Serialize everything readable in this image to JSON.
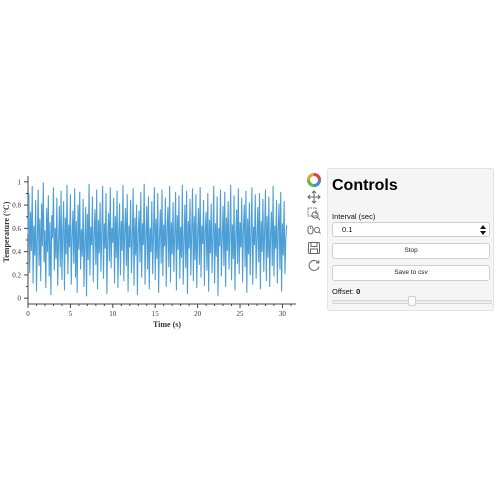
{
  "chart_data": {
    "type": "line",
    "xlabel": "Time (s)",
    "ylabel": "Temperature (°C)",
    "xlim": [
      0,
      31.6
    ],
    "ylim": [
      -0.05,
      1.05
    ],
    "xticks": [
      0,
      5,
      10,
      15,
      20,
      25,
      30
    ],
    "xtick_labels": [
      "0",
      "5",
      "10",
      "15",
      "20",
      "25",
      "30"
    ],
    "yticks": [
      0,
      0.2,
      0.4,
      0.6,
      0.8,
      1
    ],
    "ytick_labels": [
      "0",
      "0.2",
      "0.4",
      "0.6",
      "0.8",
      "1"
    ],
    "line_color": "#4c9fd6",
    "grid": false,
    "series": [
      {
        "x_start": 0,
        "x_step": 0.1,
        "y": [
          0.55,
          0.9,
          0.22,
          0.74,
          0.41,
          0.96,
          0.13,
          0.62,
          0.37,
          0.84,
          0.06,
          0.5,
          0.93,
          0.28,
          0.68,
          0.15,
          0.81,
          0.45,
          0.99,
          0.31,
          0.58,
          0.09,
          0.77,
          0.4,
          0.88,
          0.19,
          0.65,
          0.03,
          0.71,
          0.52,
          0.95,
          0.24,
          0.6,
          0.34,
          0.86,
          0.11,
          0.47,
          0.79,
          0.27,
          0.92,
          0.16,
          0.56,
          0.83,
          0.07,
          0.69,
          0.38,
          0.97,
          0.21,
          0.63,
          0.44,
          0.89,
          0.12,
          0.53,
          0.75,
          0.3,
          0.94,
          0.18,
          0.66,
          0.05,
          0.8,
          0.42,
          0.91,
          0.25,
          0.59,
          0.36,
          0.85,
          0.1,
          0.49,
          0.78,
          0.02,
          0.72,
          0.33,
          0.98,
          0.2,
          0.61,
          0.46,
          0.87,
          0.14,
          0.54,
          0.76,
          0.29,
          0.93,
          0.08,
          0.67,
          0.39,
          0.82,
          0.23,
          0.57,
          0.96,
          0.17,
          0.64,
          0.43,
          0.9,
          0.04,
          0.51,
          0.73,
          0.32,
          0.95,
          0.26,
          0.6,
          0.48,
          0.86,
          0.13,
          0.7,
          0.35,
          0.92,
          0.09,
          0.55,
          0.81,
          0.2,
          0.66,
          0.41,
          0.97,
          0.15,
          0.58,
          0.77,
          0.28,
          0.89,
          0.06,
          0.62,
          0.44,
          0.84,
          0.22,
          0.5,
          0.94,
          0.11,
          0.69,
          0.37,
          0.8,
          0.03,
          0.57,
          0.75,
          0.31,
          0.91,
          0.18,
          0.64,
          0.46,
          0.98,
          0.12,
          0.53,
          0.79,
          0.25,
          0.87,
          0.08,
          0.6,
          0.4,
          0.83,
          0.21,
          0.56,
          0.95,
          0.16,
          0.68,
          0.34,
          0.9,
          0.05,
          0.52,
          0.76,
          0.3,
          0.93,
          0.19,
          0.63,
          0.45,
          0.86,
          0.1,
          0.59,
          0.78,
          0.27,
          0.96,
          0.14,
          0.65,
          0.38,
          0.82,
          0.23,
          0.54,
          0.91,
          0.07,
          0.71,
          0.42,
          0.88,
          0.17,
          0.61,
          0.35,
          0.97,
          0.12,
          0.48,
          0.8,
          0.26,
          0.92,
          0.04,
          0.66,
          0.43,
          0.85,
          0.2,
          0.57,
          0.94,
          0.15,
          0.7,
          0.33,
          0.89,
          0.09,
          0.55,
          0.77,
          0.29,
          0.95,
          0.18,
          0.62,
          0.47,
          0.84,
          0.11,
          0.58,
          0.74,
          0.24,
          0.9,
          0.06,
          0.67,
          0.39,
          0.81,
          0.22,
          0.52,
          0.96,
          0.13,
          0.64,
          0.36,
          0.87,
          0.02,
          0.6,
          0.45,
          0.93,
          0.19,
          0.5,
          0.79,
          0.28,
          0.91,
          0.1,
          0.69,
          0.41,
          0.83,
          0.25,
          0.56,
          0.97,
          0.16,
          0.63,
          0.34,
          0.88,
          0.07,
          0.53,
          0.76,
          0.3,
          0.94,
          0.21,
          0.65,
          0.44,
          0.86,
          0.14,
          0.59,
          0.8,
          0.27,
          0.92,
          0.05,
          0.68,
          0.38,
          0.82,
          0.2,
          0.55,
          0.95,
          0.12,
          0.61,
          0.46,
          0.89,
          0.17,
          0.52,
          0.78,
          0.31,
          0.9,
          0.08,
          0.66,
          0.4,
          0.85,
          0.23,
          0.57,
          0.93,
          0.15,
          0.7,
          0.35,
          0.87,
          0.1,
          0.54,
          0.74,
          0.28,
          0.96,
          0.19,
          0.62,
          0.43,
          0.84,
          0.13,
          0.58,
          0.81,
          0.25,
          0.91,
          0.06,
          0.64,
          0.37,
          0.83,
          0.21,
          0.5,
          0.63
        ]
      }
    ]
  },
  "toolbar": {
    "icons": [
      "bokeh-logo-icon",
      "pan-icon",
      "box-zoom-icon",
      "wheel-zoom-icon",
      "save-icon",
      "reset-icon"
    ]
  },
  "controls": {
    "title": "Controls",
    "interval_label": "Interval (sec)",
    "interval_value": "0.1",
    "stop_label": "Stop",
    "save_label": "Save to csv",
    "offset_label": "Offset:",
    "offset_value": "0",
    "offset_range": [
      -10,
      10
    ],
    "offset_fraction": 0.5
  }
}
